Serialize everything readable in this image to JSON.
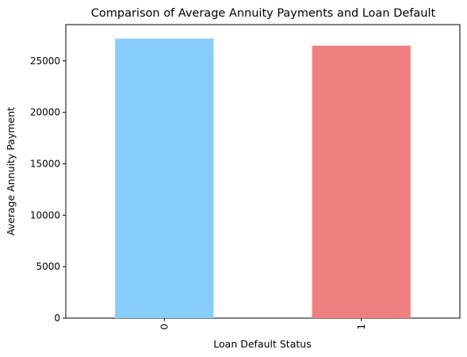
{
  "chart_data": {
    "type": "bar",
    "title": "Comparison of Average Annuity Payments and Loan Default",
    "xlabel": "Loan Default Status",
    "ylabel": "Average Annuity Payment",
    "categories": [
      "0",
      "1"
    ],
    "values": [
      27170,
      26480
    ],
    "colors": [
      "#87CEFA",
      "#F08080"
    ],
    "ylim": [
      0,
      28530
    ],
    "yticks": [
      0,
      5000,
      10000,
      15000,
      20000,
      25000
    ],
    "xtick_rotation": 90,
    "grid": false,
    "legend": "none"
  }
}
